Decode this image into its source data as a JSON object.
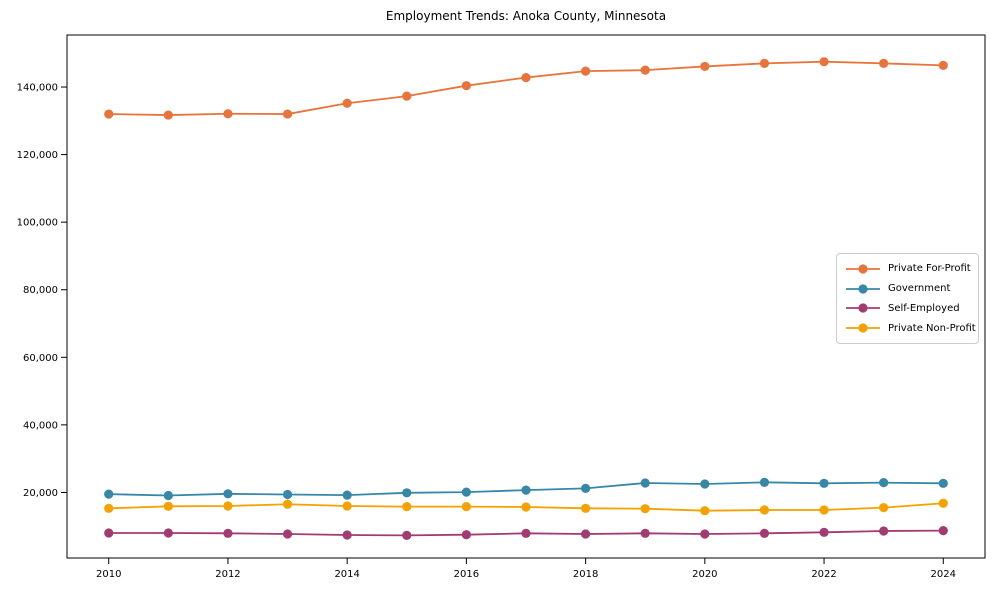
{
  "figure": {
    "background": "#ffffff",
    "axis_color": "#000000",
    "text_color": "#000000",
    "legend_border_color": "#cccccc"
  },
  "chart_data": {
    "type": "line",
    "title": "Employment Trends: Anoka County, Minnesota",
    "xlabel": "",
    "ylabel": "",
    "grid": false,
    "legend_position": "center right",
    "marker": "o",
    "x": [
      2010,
      2011,
      2012,
      2013,
      2014,
      2015,
      2016,
      2017,
      2018,
      2019,
      2020,
      2021,
      2022,
      2023,
      2024
    ],
    "x_ticks": [
      2010,
      2012,
      2014,
      2016,
      2018,
      2020,
      2022,
      2024
    ],
    "y_ticks": [
      20000,
      40000,
      60000,
      80000,
      100000,
      120000,
      140000
    ],
    "xlim": [
      2009.3,
      2024.7
    ],
    "ylim": [
      600,
      155400
    ],
    "series": [
      {
        "name": "Private For-Profit",
        "color": "#E8743B",
        "values": [
          132000,
          131700,
          132100,
          132000,
          135200,
          137300,
          140400,
          142800,
          144700,
          145000,
          146100,
          147000,
          147500,
          147000,
          146400
        ]
      },
      {
        "name": "Government",
        "color": "#3787A8",
        "values": [
          19500,
          19100,
          19600,
          19400,
          19200,
          19900,
          20100,
          20700,
          21200,
          22800,
          22500,
          23000,
          22700,
          22900,
          22700
        ]
      },
      {
        "name": "Self-Employed",
        "color": "#A23B72",
        "values": [
          8000,
          8000,
          7900,
          7700,
          7400,
          7300,
          7500,
          7900,
          7700,
          7900,
          7700,
          7900,
          8200,
          8600,
          8700
        ]
      },
      {
        "name": "Private Non-Profit",
        "color": "#F5A100",
        "values": [
          15300,
          15900,
          16000,
          16500,
          16000,
          15800,
          15800,
          15700,
          15300,
          15200,
          14600,
          14800,
          14800,
          15500,
          16800
        ]
      }
    ]
  }
}
